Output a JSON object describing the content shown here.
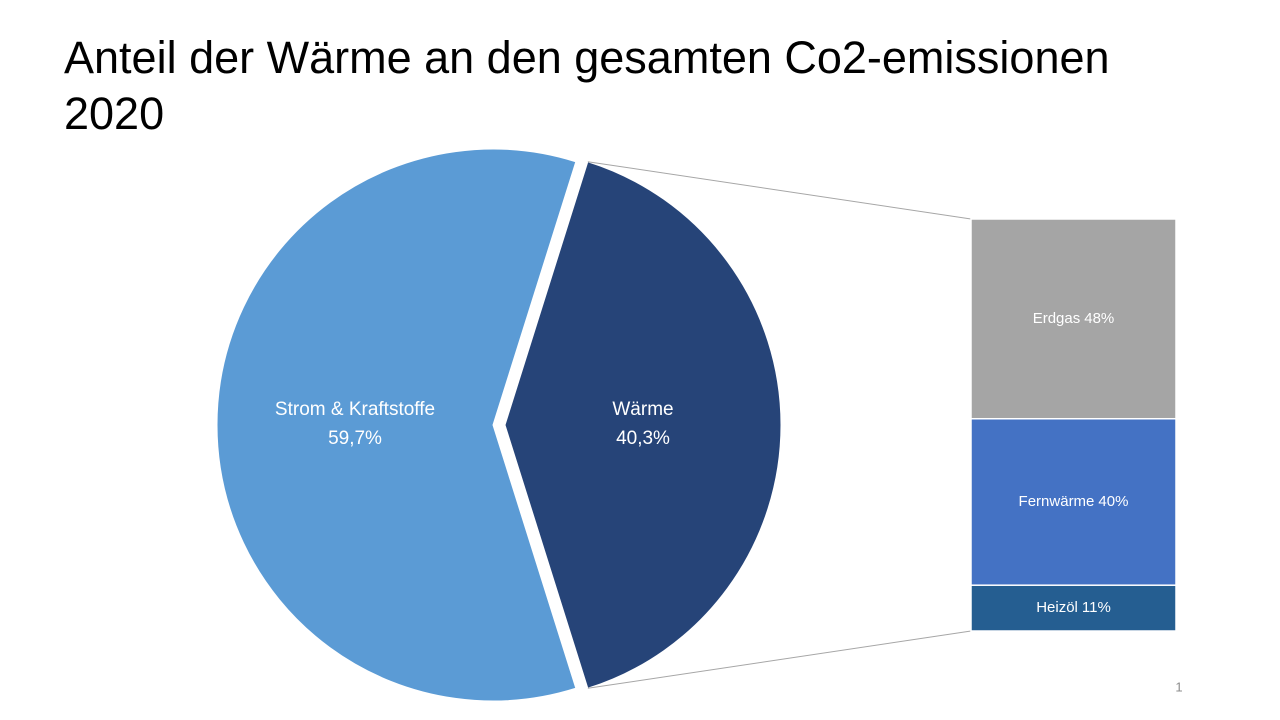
{
  "chart_data": {
    "type": "pie-of-bar",
    "title": "Anteil der Wärme an den gesamten Co2-emissionen 2020",
    "categories": [
      "Strom & Kraftstoffe",
      "Wärme"
    ],
    "values": [
      59.7,
      40.3
    ],
    "value_labels": [
      "59,7%",
      "40,3%"
    ],
    "colors": [
      "#5b9bd5",
      "#264478"
    ],
    "exploded": 1,
    "breakdown": {
      "categories": [
        "Erdgas",
        "Fernwärme",
        "Heizöl"
      ],
      "values": [
        48,
        40,
        11
      ],
      "value_labels": [
        "48%",
        "40%",
        "11%"
      ],
      "colors": [
        "#a5a5a5",
        "#4472c4",
        "#255e91"
      ]
    },
    "page_number": 1
  }
}
